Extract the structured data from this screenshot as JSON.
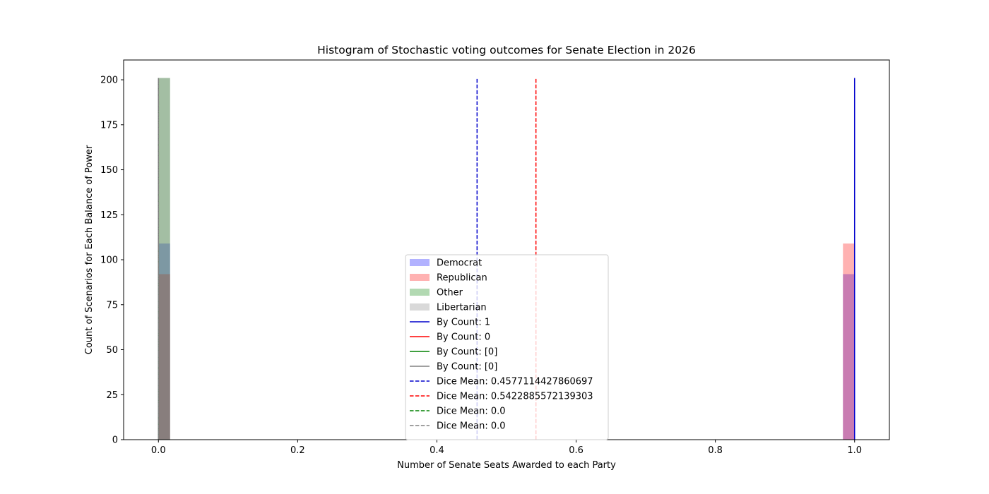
{
  "chart_data": {
    "type": "bar",
    "title": "Histogram of Stochastic voting outcomes for Senate Election in 2026",
    "xlabel": "Number of Senate Seats Awarded to each Party",
    "ylabel": "Count of Scenarios for Each Balance of Power",
    "xlim": [
      -0.05,
      1.05
    ],
    "ylim": [
      0,
      211
    ],
    "xticks": [
      0.0,
      0.2,
      0.4,
      0.6,
      0.8,
      1.0
    ],
    "xtick_labels": [
      "0.0",
      "0.2",
      "0.4",
      "0.6",
      "0.8",
      "1.0"
    ],
    "yticks": [
      0,
      25,
      50,
      75,
      100,
      125,
      150,
      175,
      200
    ],
    "ytick_labels": [
      "0",
      "25",
      "50",
      "75",
      "100",
      "125",
      "150",
      "175",
      "200"
    ],
    "bin_width": 0.0167,
    "series": [
      {
        "name": "Democrat",
        "color": "#0000ff",
        "alpha": 0.3,
        "bars": [
          {
            "x": 0.0,
            "value": 109
          },
          {
            "x": 0.9833,
            "value": 92
          }
        ]
      },
      {
        "name": "Republican",
        "color": "#ff0000",
        "alpha": 0.3,
        "bars": [
          {
            "x": 0.0,
            "value": 92
          },
          {
            "x": 0.9833,
            "value": 109
          }
        ]
      },
      {
        "name": "Other",
        "color": "#008000",
        "alpha": 0.3,
        "bars": [
          {
            "x": 0.0,
            "value": 201
          }
        ]
      },
      {
        "name": "Libertarian",
        "color": "#808080",
        "alpha": 0.3,
        "bars": [
          {
            "x": 0.0,
            "value": 201
          }
        ]
      }
    ],
    "vlines": [
      {
        "label": "By Count: 1",
        "x": 1.0,
        "color": "#0000cc",
        "style": "solid",
        "ymax": 201
      },
      {
        "label": "By Count: 0",
        "x": 0.0,
        "color": "#ff0000",
        "style": "solid",
        "ymax": 201
      },
      {
        "label": "By Count: [0]",
        "x": 0.0,
        "color": "#008000",
        "style": "solid",
        "ymax": 201
      },
      {
        "label": "By Count: [0]",
        "x": 0.0,
        "color": "#808080",
        "style": "solid",
        "ymax": 201
      },
      {
        "label": "Dice Mean: 0.4577114427860697",
        "x": 0.4577114427860697,
        "color": "#0000cc",
        "style": "dashed",
        "ymax": 201
      },
      {
        "label": "Dice Mean: 0.5422885572139303",
        "x": 0.5422885572139303,
        "color": "#ff0000",
        "style": "dashed",
        "ymax": 201
      },
      {
        "label": "Dice Mean: 0.0",
        "x": 0.0,
        "color": "#008000",
        "style": "dashed",
        "ymax": 201
      },
      {
        "label": "Dice Mean: 0.0",
        "x": 0.0,
        "color": "#808080",
        "style": "dashed",
        "ymax": 201
      }
    ],
    "legend": {
      "placement": "lower-center",
      "entries": [
        {
          "label": "Democrat",
          "kind": "patch",
          "color": "#0000ff",
          "alpha": 0.3
        },
        {
          "label": "Republican",
          "kind": "patch",
          "color": "#ff0000",
          "alpha": 0.3
        },
        {
          "label": "Other",
          "kind": "patch",
          "color": "#008000",
          "alpha": 0.3
        },
        {
          "label": "Libertarian",
          "kind": "patch",
          "color": "#808080",
          "alpha": 0.3
        },
        {
          "label": "By Count: 1",
          "kind": "line",
          "color": "#0000cc",
          "style": "solid"
        },
        {
          "label": "By Count: 0",
          "kind": "line",
          "color": "#ff0000",
          "style": "solid"
        },
        {
          "label": "By Count: [0]",
          "kind": "line",
          "color": "#008000",
          "style": "solid"
        },
        {
          "label": "By Count: [0]",
          "kind": "line",
          "color": "#808080",
          "style": "solid"
        },
        {
          "label": "Dice Mean: 0.4577114427860697",
          "kind": "line",
          "color": "#0000cc",
          "style": "dashed"
        },
        {
          "label": "Dice Mean: 0.5422885572139303",
          "kind": "line",
          "color": "#ff0000",
          "style": "dashed"
        },
        {
          "label": "Dice Mean: 0.0",
          "kind": "line",
          "color": "#008000",
          "style": "dashed"
        },
        {
          "label": "Dice Mean: 0.0",
          "kind": "line",
          "color": "#808080",
          "style": "dashed"
        }
      ]
    },
    "grid": false
  }
}
